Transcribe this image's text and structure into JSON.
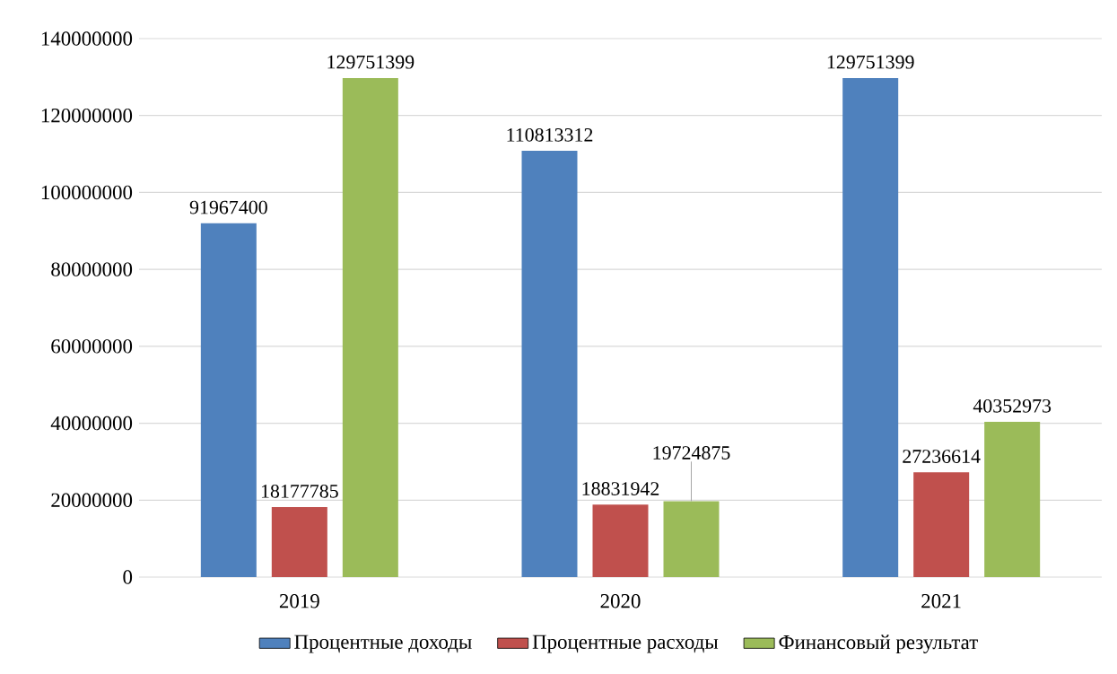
{
  "chart_data": {
    "type": "bar",
    "categories": [
      "2019",
      "2020",
      "2021"
    ],
    "series": [
      {
        "name": "Процентные доходы",
        "color": "#4f81bd",
        "values": [
          91967400,
          110813312,
          129751399
        ]
      },
      {
        "name": "Процентные расходы",
        "color": "#c0504d",
        "values": [
          18177785,
          18831942,
          27236614
        ]
      },
      {
        "name": "Финансовый результат",
        "color": "#9bbb59",
        "values": [
          129751399,
          19724875,
          40352973
        ]
      }
    ],
    "ylim": [
      0,
      140000000
    ],
    "yticks": [
      0,
      20000000,
      40000000,
      60000000,
      80000000,
      100000000,
      120000000,
      140000000
    ],
    "grid": "y",
    "legend": "bottom",
    "data_labels": true
  }
}
